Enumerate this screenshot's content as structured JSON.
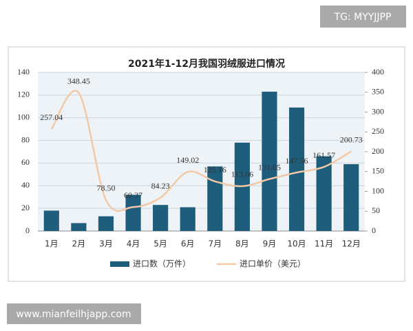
{
  "watermark_top": "TG: MYYJJPP",
  "watermark_bottom": "www.mianfeilhjapp.com",
  "chart_data": {
    "type": "bar-line",
    "title": "2021年1-12月我国羽绒服进口情况",
    "categories": [
      "1月",
      "2月",
      "3月",
      "4月",
      "5月",
      "6月",
      "7月",
      "8月",
      "9月",
      "10月",
      "11月",
      "12月"
    ],
    "series": [
      {
        "name": "进口数（万件）",
        "type": "bar",
        "color": "#1e5d7b",
        "values": [
          18,
          7,
          13,
          32,
          23,
          21,
          57,
          78,
          123,
          109,
          66,
          59
        ]
      },
      {
        "name": "进口单价（美元）",
        "type": "line",
        "axis": "y2",
        "color": "#f3c9a5",
        "values": [
          257.04,
          348.45,
          78.5,
          60.37,
          84.23,
          149.02,
          125.16,
          113.06,
          131.05,
          147.56,
          161.57,
          200.73
        ],
        "value_labels": [
          "257.04",
          "348.45",
          "78.50",
          "60.37",
          "84.23",
          "149.02",
          "125.16",
          "113.06",
          "131.05",
          "147.56",
          "161.57",
          "200.73"
        ]
      }
    ],
    "ylim": [
      0,
      140
    ],
    "yticks": [
      0,
      20,
      40,
      60,
      80,
      100,
      120,
      140
    ],
    "y2lim": [
      0,
      400
    ],
    "y2ticks": [
      0,
      50,
      100,
      150,
      200,
      250,
      300,
      350,
      400
    ],
    "grid": true,
    "legend": "bottom"
  }
}
